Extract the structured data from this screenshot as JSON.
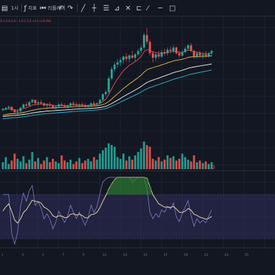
{
  "toolbar": {
    "interval_label": "1시",
    "indicators_label": "지표",
    "replay_label": "리플레이",
    "ohlc_text": "O 1.0 H 1.0 L 1.0 C 1.0 +3.0 (+0.4%)",
    "drawing_tools": [
      "line-tool-icon",
      "crosshair-icon",
      "fib-icon",
      "brush-icon",
      "text-icon",
      "measure-icon",
      "zoom-icon",
      "horizontal-line-icon",
      "rectangle-icon"
    ]
  },
  "colors": {
    "background": "#131722",
    "up": "#26a69a",
    "down": "#ef5350",
    "ma_fast": "#ef5350",
    "ma_mid": "#f2c94c",
    "ma_slow1": "#26c6da",
    "ma_slow2": "#ffffff",
    "oscillator_band": "#2b2b55",
    "oscillator_line": "#e6d6a8",
    "oscillator_secondary": "#8f8fe0",
    "overbought_fill": "#2e7d32"
  },
  "time_axis": {
    "labels": [
      "1",
      "3",
      "5",
      "7",
      "9",
      "11",
      "13",
      "15",
      "17",
      "19",
      "21",
      "23",
      "25"
    ]
  },
  "chart_data": {
    "type": "candlestick",
    "candles": [
      [
        100,
        102,
        99,
        101
      ],
      [
        101,
        103,
        100,
        102
      ],
      [
        102,
        104,
        101,
        103
      ],
      [
        103,
        103,
        99,
        100
      ],
      [
        100,
        101,
        97,
        98
      ],
      [
        98,
        100,
        96,
        99
      ],
      [
        99,
        103,
        98,
        102
      ],
      [
        102,
        106,
        101,
        105
      ],
      [
        105,
        107,
        103,
        104
      ],
      [
        104,
        108,
        103,
        107
      ],
      [
        107,
        110,
        106,
        109
      ],
      [
        109,
        109,
        105,
        106
      ],
      [
        106,
        108,
        104,
        107
      ],
      [
        107,
        109,
        105,
        106
      ],
      [
        106,
        107,
        103,
        104
      ],
      [
        104,
        106,
        102,
        105
      ],
      [
        105,
        107,
        103,
        104
      ],
      [
        104,
        105,
        101,
        102
      ],
      [
        102,
        104,
        100,
        103
      ],
      [
        103,
        106,
        102,
        105
      ],
      [
        105,
        107,
        103,
        104
      ],
      [
        104,
        106,
        102,
        103
      ],
      [
        103,
        105,
        101,
        104
      ],
      [
        104,
        107,
        103,
        106
      ],
      [
        106,
        108,
        104,
        105
      ],
      [
        105,
        107,
        103,
        104
      ],
      [
        104,
        106,
        102,
        105
      ],
      [
        105,
        107,
        103,
        104
      ],
      [
        104,
        106,
        102,
        103
      ],
      [
        103,
        105,
        101,
        104
      ],
      [
        104,
        107,
        103,
        106
      ],
      [
        106,
        108,
        104,
        105
      ],
      [
        105,
        107,
        103,
        106
      ],
      [
        106,
        110,
        105,
        109
      ],
      [
        109,
        115,
        108,
        114
      ],
      [
        114,
        118,
        112,
        116
      ],
      [
        116,
        130,
        115,
        128
      ],
      [
        128,
        138,
        126,
        136
      ],
      [
        136,
        142,
        134,
        140
      ],
      [
        140,
        145,
        137,
        142
      ],
      [
        142,
        146,
        139,
        144
      ],
      [
        144,
        148,
        141,
        147
      ],
      [
        147,
        150,
        143,
        145
      ],
      [
        145,
        149,
        142,
        148
      ],
      [
        148,
        152,
        145,
        146
      ],
      [
        146,
        150,
        143,
        149
      ],
      [
        149,
        154,
        147,
        152
      ],
      [
        152,
        157,
        150,
        155
      ],
      [
        155,
        168,
        153,
        166
      ],
      [
        166,
        172,
        158,
        160
      ],
      [
        160,
        162,
        148,
        150
      ],
      [
        150,
        152,
        142,
        146
      ],
      [
        146,
        150,
        143,
        149
      ],
      [
        149,
        152,
        145,
        147
      ],
      [
        147,
        153,
        146,
        151
      ],
      [
        151,
        154,
        148,
        150
      ],
      [
        150,
        155,
        148,
        153
      ],
      [
        153,
        156,
        150,
        152
      ],
      [
        152,
        157,
        150,
        155
      ],
      [
        155,
        156,
        149,
        150
      ],
      [
        150,
        152,
        146,
        148
      ],
      [
        148,
        153,
        147,
        151
      ],
      [
        151,
        156,
        150,
        154
      ],
      [
        154,
        158,
        152,
        157
      ],
      [
        157,
        159,
        151,
        152
      ],
      [
        152,
        153,
        145,
        147
      ],
      [
        147,
        151,
        145,
        150
      ],
      [
        150,
        152,
        146,
        148
      ],
      [
        148,
        150,
        145,
        149
      ],
      [
        149,
        152,
        146,
        148
      ],
      [
        148,
        151,
        146,
        150
      ],
      [
        150,
        153,
        147,
        152
      ]
    ],
    "ylim": [
      85,
      175
    ],
    "volumes": [
      8,
      14,
      6,
      10,
      18,
      12,
      9,
      15,
      7,
      11,
      20,
      9,
      13,
      6,
      10,
      14,
      8,
      12,
      9,
      7,
      16,
      10,
      8,
      11,
      6,
      9,
      13,
      7,
      10,
      12,
      9,
      14,
      11,
      18,
      22,
      25,
      30,
      28,
      26,
      14,
      12,
      18,
      10,
      15,
      11,
      16,
      20,
      24,
      32,
      28,
      26,
      12,
      10,
      14,
      9,
      11,
      16,
      13,
      15,
      10,
      12,
      18,
      14,
      11,
      9,
      16,
      8,
      10,
      7,
      9,
      6,
      8
    ]
  }
}
